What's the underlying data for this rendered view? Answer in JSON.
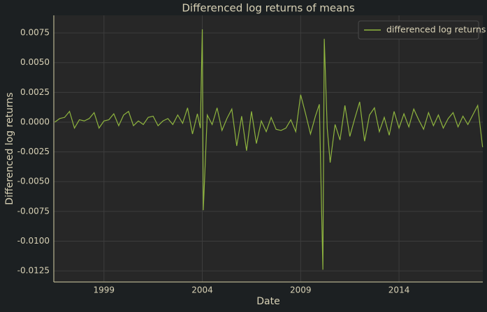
{
  "chart_data": {
    "type": "line",
    "title": "Differenced log returns of means",
    "xlabel": "Date",
    "ylabel": "Differenced log returns",
    "x": [
      1996.5,
      1996.75,
      1997.0,
      1997.25,
      1997.5,
      1997.75,
      1998.0,
      1998.25,
      1998.5,
      1998.75,
      1999.0,
      1999.25,
      1999.5,
      1999.75,
      2000.0,
      2000.25,
      2000.5,
      2000.75,
      2001.0,
      2001.25,
      2001.5,
      2001.75,
      2002.0,
      2002.25,
      2002.5,
      2002.75,
      2003.0,
      2003.25,
      2003.5,
      2003.75,
      2003.9,
      2004.0,
      2004.05,
      2004.25,
      2004.5,
      2004.75,
      2005.0,
      2005.25,
      2005.5,
      2005.75,
      2006.0,
      2006.25,
      2006.5,
      2006.75,
      2007.0,
      2007.25,
      2007.5,
      2007.75,
      2008.0,
      2008.25,
      2008.5,
      2008.75,
      2009.0,
      2009.25,
      2009.5,
      2009.75,
      2009.95,
      2010.13,
      2010.2,
      2010.35,
      2010.5,
      2010.75,
      2011.0,
      2011.25,
      2011.5,
      2011.75,
      2012.0,
      2012.25,
      2012.5,
      2012.75,
      2013.0,
      2013.25,
      2013.5,
      2013.75,
      2014.0,
      2014.25,
      2014.5,
      2014.75,
      2015.0,
      2015.25,
      2015.5,
      2015.75,
      2016.0,
      2016.25,
      2016.5,
      2016.75,
      2017.0,
      2017.25,
      2017.5,
      2017.75,
      2018.0,
      2018.25
    ],
    "series": [
      {
        "name": "differenced log returns",
        "color": "#8fb53f",
        "values": [
          0,
          0.0003,
          0.0004,
          0.0009,
          -0.0005,
          0.0002,
          0.0001,
          0.0003,
          0.0008,
          -0.0005,
          0.0001,
          0.0002,
          0.0007,
          -0.0003,
          0.0006,
          0.0009,
          -0.0003,
          0.0001,
          -0.0002,
          0.0004,
          0.0005,
          -0.0003,
          0.0001,
          0.0003,
          -0.0002,
          0.0006,
          -0.0001,
          0.0012,
          -0.001,
          0.0007,
          -0.0005,
          0.0078,
          -0.0074,
          0.0006,
          -0.0002,
          0.0012,
          -0.0007,
          0.0003,
          0.0011,
          -0.002,
          0.0005,
          -0.0024,
          0.0009,
          -0.0018,
          0.0001,
          -0.0008,
          0.0004,
          -0.0006,
          -0.0007,
          -0.0005,
          0.0002,
          -0.0008,
          0.0023,
          0.0007,
          -0.001,
          0.0005,
          0.0015,
          -0.0124,
          0.007,
          -0.0005,
          -0.0034,
          -0.0002,
          -0.0015,
          0.0014,
          -0.0012,
          0.0003,
          0.0017,
          -0.0016,
          0.0006,
          0.0012,
          -0.0008,
          0.0004,
          -0.0011,
          0.0009,
          -0.0005,
          0.0007,
          -0.0004,
          0.0011,
          0.0002,
          -0.0006,
          0.0008,
          -0.0003,
          0.0006,
          -0.0005,
          0.0003,
          0.0008,
          -0.0004,
          0.0005,
          -0.0002,
          0.0006,
          0.0014,
          -0.0021
        ]
      }
    ],
    "xlim": [
      1996.45,
      2018.26
    ],
    "xticks": [
      1999,
      2004,
      2009,
      2014
    ],
    "ylim": [
      -0.01343,
      0.00897
    ],
    "yticks": [
      -0.0125,
      {
        "value": -0.01,
        "label": "-0.0100"
      },
      -0.0075,
      {
        "value": -0.005,
        "label": "-0.0050"
      },
      -0.0025,
      {
        "value": 0,
        "label": "0.0000"
      },
      0.0025,
      {
        "value": 0.005,
        "label": "0.0050"
      },
      0.0075
    ],
    "grid": true,
    "legend": "upper right"
  }
}
